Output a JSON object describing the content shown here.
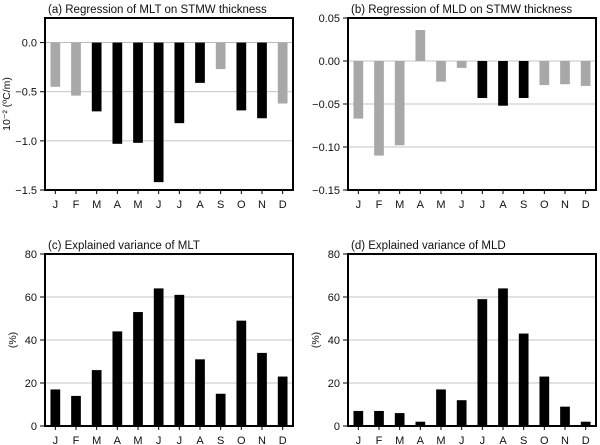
{
  "colors": {
    "significant": "#000000",
    "not_significant": "#a8a8a8",
    "grid": "#b0b0b0"
  },
  "chart_data": [
    {
      "type": "bar",
      "title": "(a) Regression of MLT on STMW thickness",
      "ylabel": "10⁻² (ºC/m)",
      "xlabel": "",
      "categories": [
        "J",
        "F",
        "M",
        "A",
        "M",
        "J",
        "J",
        "A",
        "S",
        "O",
        "N",
        "D"
      ],
      "values": [
        -0.45,
        -0.54,
        -0.7,
        -1.03,
        -1.02,
        -1.42,
        -0.82,
        -0.41,
        -0.27,
        -0.69,
        -0.77,
        -0.62
      ],
      "significant": [
        false,
        false,
        true,
        true,
        true,
        true,
        true,
        true,
        false,
        true,
        true,
        false
      ],
      "ylim": [
        -1.5,
        0.25
      ],
      "yticks": [
        0.0,
        -0.5,
        -1.0,
        -1.5
      ],
      "ytick_labels": [
        "0.0",
        "−0.5",
        "−1.0",
        "−1.5"
      ],
      "grid": true
    },
    {
      "type": "bar",
      "title": "(b) Regression of MLD on STMW thickness",
      "ylabel": "",
      "xlabel": "",
      "categories": [
        "J",
        "F",
        "M",
        "A",
        "M",
        "J",
        "J",
        "A",
        "S",
        "O",
        "N",
        "D"
      ],
      "values": [
        -0.067,
        -0.11,
        -0.098,
        0.036,
        -0.024,
        -0.008,
        -0.043,
        -0.052,
        -0.043,
        -0.028,
        -0.027,
        -0.029
      ],
      "significant": [
        false,
        false,
        false,
        false,
        false,
        false,
        true,
        true,
        true,
        false,
        false,
        false
      ],
      "ylim": [
        -0.15,
        0.05
      ],
      "yticks": [
        0.05,
        0.0,
        -0.05,
        -0.1,
        -0.15
      ],
      "ytick_labels": [
        "0.05",
        "0.00",
        "−0.05",
        "−0.10",
        "−0.15"
      ],
      "grid": true
    },
    {
      "type": "bar",
      "title": "(c) Explained variance of MLT",
      "ylabel": "(%)",
      "xlabel": "",
      "categories": [
        "J",
        "F",
        "M",
        "A",
        "M",
        "J",
        "J",
        "A",
        "S",
        "O",
        "N",
        "D"
      ],
      "values": [
        17,
        14,
        26,
        44,
        53,
        64,
        61,
        31,
        15,
        49,
        34,
        23
      ],
      "significant": [
        true,
        true,
        true,
        true,
        true,
        true,
        true,
        true,
        true,
        true,
        true,
        true
      ],
      "ylim": [
        0,
        80
      ],
      "yticks": [
        0,
        20,
        40,
        60,
        80
      ],
      "ytick_labels": [
        "0",
        "20",
        "40",
        "60",
        "80"
      ],
      "grid": true
    },
    {
      "type": "bar",
      "title": "(d) Explained variance of MLD",
      "ylabel": "(%)",
      "xlabel": "",
      "categories": [
        "J",
        "F",
        "M",
        "A",
        "M",
        "J",
        "J",
        "A",
        "S",
        "O",
        "N",
        "D"
      ],
      "values": [
        7,
        7,
        6,
        2,
        17,
        12,
        59,
        64,
        43,
        23,
        9,
        2
      ],
      "significant": [
        true,
        true,
        true,
        true,
        true,
        true,
        true,
        true,
        true,
        true,
        true,
        true
      ],
      "ylim": [
        0,
        80
      ],
      "yticks": [
        0,
        20,
        40,
        60,
        80
      ],
      "ytick_labels": [
        "0",
        "20",
        "40",
        "60",
        "80"
      ],
      "grid": true
    }
  ]
}
